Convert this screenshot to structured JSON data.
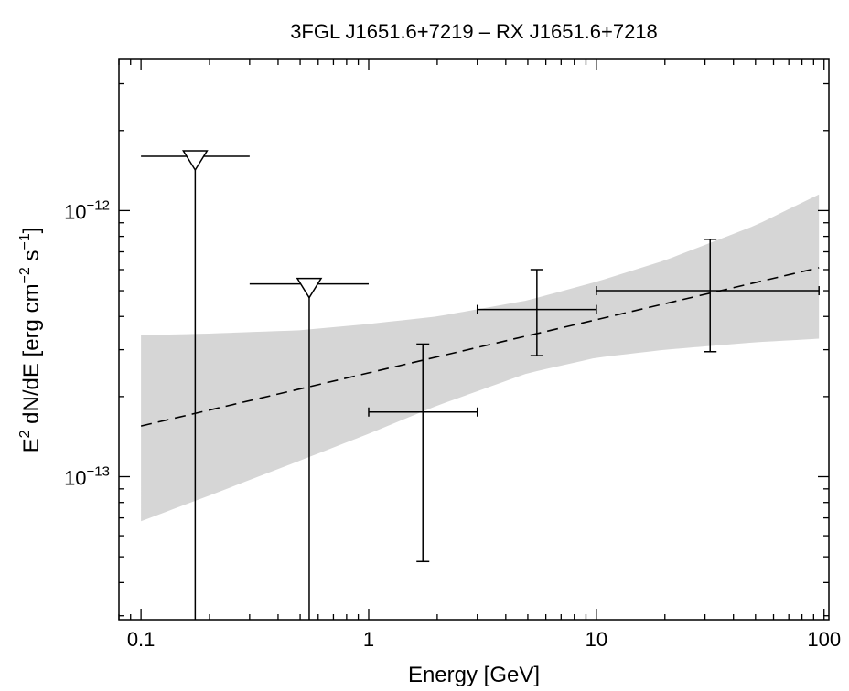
{
  "chart_data": {
    "type": "scatter",
    "title": "3FGL J1651.6+7219 – RX J1651.6+7218",
    "xlabel": "Energy [GeV]",
    "ylabel": {
      "main": "E",
      "sup": "2",
      "mid": " dN/dE [erg cm",
      "sup2": "−2",
      "mid2": " s",
      "sup3": "−1",
      "end": "]"
    },
    "x_scale": "log",
    "y_scale": "log",
    "xlim": [
      0.08,
      105
    ],
    "ylim": [
      2.9e-14,
      3.7e-12
    ],
    "x_tick_labels": [
      {
        "value": 0.1,
        "text": "0.1"
      },
      {
        "value": 1,
        "text": "1"
      },
      {
        "value": 10,
        "text": "10"
      },
      {
        "value": 100,
        "text": "100"
      }
    ],
    "y_tick_labels": [
      {
        "value": 1e-13,
        "base": "10",
        "exp": "−13"
      },
      {
        "value": 1e-12,
        "base": "10",
        "exp": "−12"
      }
    ],
    "grid": false,
    "band_color": "#d6d6d6",
    "line_color": "#000000",
    "butterfly_band": {
      "x": [
        0.1,
        0.2,
        0.5,
        1,
        2,
        5,
        10,
        20,
        50,
        95
      ],
      "upper": [
        3.4e-13,
        3.45e-13,
        3.55e-13,
        3.75e-13,
        4e-13,
        4.6e-13,
        5.4e-13,
        6.5e-13,
        8.8e-13,
        1.15e-12
      ],
      "lower": [
        6.8e-14,
        8.5e-14,
        1.15e-13,
        1.45e-13,
        1.85e-13,
        2.45e-13,
        2.8e-13,
        3e-13,
        3.2e-13,
        3.3e-13
      ]
    },
    "model_line": {
      "style": "dashed",
      "x": [
        0.1,
        95
      ],
      "y": [
        1.55e-13,
        6.1e-13
      ]
    },
    "upper_limits": [
      {
        "x": 0.173,
        "x_low": 0.1,
        "x_high": 0.3,
        "y": 1.6e-12
      },
      {
        "x": 0.548,
        "x_low": 0.3,
        "x_high": 1.0,
        "y": 5.3e-13
      }
    ],
    "points": [
      {
        "x": 1.73,
        "x_low": 1.0,
        "x_high": 3.0,
        "y": 1.75e-13,
        "y_low": 4.8e-14,
        "y_high": 3.15e-13
      },
      {
        "x": 5.48,
        "x_low": 3.0,
        "x_high": 10.0,
        "y": 4.25e-13,
        "y_low": 2.85e-13,
        "y_high": 6e-13
      },
      {
        "x": 31.6,
        "x_low": 10.0,
        "x_high": 95.0,
        "y": 5e-13,
        "y_low": 2.95e-13,
        "y_high": 7.8e-13
      }
    ]
  }
}
